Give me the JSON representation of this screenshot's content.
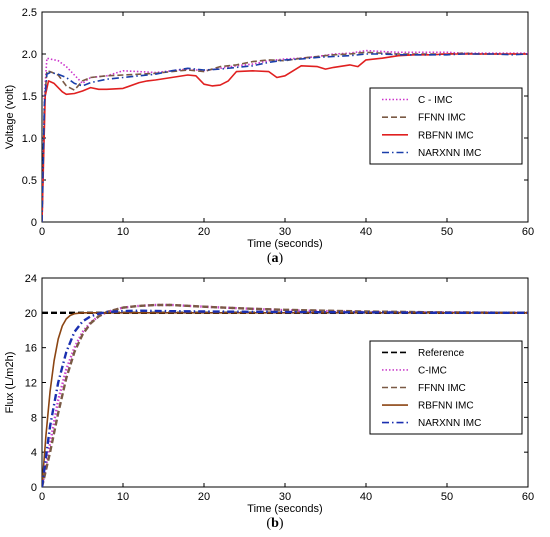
{
  "chart_data": [
    {
      "type": "line",
      "panel_label": "a",
      "xlabel": "Time (seconds)",
      "ylabel": "Voltage (volt)",
      "xlim": [
        0,
        60
      ],
      "ylim": [
        0,
        2.5
      ],
      "xticks": [
        0,
        10,
        20,
        30,
        40,
        50,
        60
      ],
      "yticks": [
        0,
        0.5,
        1.0,
        1.5,
        2.0,
        2.5
      ],
      "ytick_labels": [
        "0",
        "0.5",
        "1.0",
        "1.5",
        "2.0",
        "2.5"
      ],
      "grid": false,
      "legend_position": "right-middle",
      "series": [
        {
          "name": "C - IMC",
          "color": "#cc33cc",
          "dash": "dotted",
          "x": [
            0,
            0.3,
            0.6,
            1,
            2,
            3,
            4,
            5,
            6,
            8,
            10,
            12,
            14,
            16,
            18,
            20,
            22,
            24,
            26,
            28,
            30,
            32,
            34,
            36,
            38,
            40,
            42,
            44,
            46,
            48,
            50,
            52,
            54,
            56,
            58,
            60
          ],
          "y": [
            0,
            1.5,
            1.95,
            1.94,
            1.92,
            1.85,
            1.75,
            1.65,
            1.72,
            1.74,
            1.8,
            1.79,
            1.78,
            1.8,
            1.82,
            1.8,
            1.83,
            1.86,
            1.88,
            1.92,
            1.94,
            1.95,
            1.97,
            2.0,
            2.01,
            2.04,
            2.03,
            2.02,
            2.02,
            2.02,
            2.02,
            2.01,
            2.01,
            2.01,
            2.01,
            2.01
          ]
        },
        {
          "name": "FFNN IMC",
          "color": "#7a5a45",
          "dash": "dashed",
          "x": [
            0,
            0.3,
            0.6,
            1,
            2,
            3,
            4,
            5,
            6,
            8,
            10,
            12,
            14,
            16,
            18,
            20,
            22,
            24,
            26,
            28,
            30,
            32,
            34,
            36,
            38,
            40,
            42,
            44,
            46,
            48,
            50,
            52,
            54,
            56,
            58,
            60
          ],
          "y": [
            0,
            1.4,
            1.8,
            1.79,
            1.75,
            1.62,
            1.57,
            1.68,
            1.72,
            1.74,
            1.75,
            1.76,
            1.77,
            1.79,
            1.81,
            1.79,
            1.85,
            1.87,
            1.91,
            1.93,
            1.92,
            1.95,
            1.97,
            1.99,
            2.0,
            2.02,
            2.01,
            2.0,
            2.0,
            2.0,
            2.0,
            2.01,
            2.0,
            2.0,
            2.0,
            2.0
          ]
        },
        {
          "name": "RBFNN IMC",
          "color": "#e02020",
          "dash": "solid",
          "x": [
            0,
            0.4,
            0.8,
            1.5,
            2.5,
            3,
            4,
            5,
            6,
            7,
            8,
            10,
            12,
            13,
            14,
            16,
            18,
            19,
            20,
            21,
            22,
            23,
            24,
            26,
            28,
            29,
            30,
            31,
            32,
            34,
            35,
            36,
            38,
            39,
            40,
            42,
            44,
            46,
            48,
            50,
            52,
            54,
            56,
            58,
            60
          ],
          "y": [
            0,
            1.5,
            1.68,
            1.65,
            1.55,
            1.52,
            1.53,
            1.56,
            1.6,
            1.58,
            1.58,
            1.59,
            1.66,
            1.68,
            1.69,
            1.72,
            1.75,
            1.74,
            1.64,
            1.62,
            1.63,
            1.68,
            1.79,
            1.8,
            1.79,
            1.72,
            1.74,
            1.8,
            1.86,
            1.85,
            1.82,
            1.84,
            1.87,
            1.85,
            1.93,
            1.95,
            1.98,
            1.99,
            1.99,
            2.0,
            2.0,
            2.0,
            2.0,
            2.0,
            2.0
          ]
        },
        {
          "name": "NARXNN IMC",
          "color": "#1a3faa",
          "dash": "dashdot",
          "x": [
            0,
            0.3,
            0.6,
            1,
            2,
            3,
            4,
            5,
            6,
            8,
            10,
            12,
            14,
            16,
            18,
            20,
            22,
            24,
            26,
            28,
            30,
            32,
            34,
            36,
            38,
            40,
            42,
            44,
            46,
            48,
            50,
            52,
            54,
            56,
            58,
            60
          ],
          "y": [
            0,
            1.4,
            1.76,
            1.78,
            1.76,
            1.72,
            1.65,
            1.62,
            1.66,
            1.7,
            1.72,
            1.74,
            1.76,
            1.8,
            1.83,
            1.81,
            1.82,
            1.84,
            1.86,
            1.9,
            1.93,
            1.94,
            1.96,
            1.97,
            1.98,
            2.0,
            2.0,
            1.99,
            1.99,
            1.99,
            1.99,
            2.0,
            2.0,
            2.0,
            1.99,
            2.0
          ]
        }
      ]
    },
    {
      "type": "line",
      "panel_label": "b",
      "xlabel": "Time (seconds)",
      "ylabel": "Flux (L/m2h)",
      "xlim": [
        0,
        60
      ],
      "ylim": [
        0,
        24
      ],
      "xticks": [
        0,
        10,
        20,
        30,
        40,
        50,
        60
      ],
      "yticks": [
        0,
        4,
        8,
        12,
        16,
        20,
        24
      ],
      "ytick_labels": [
        "0",
        "4",
        "8",
        "12",
        "16",
        "20",
        "24"
      ],
      "grid": false,
      "legend_position": "right-middle",
      "series": [
        {
          "name": "Reference",
          "color": "#000000",
          "dash": "dashed",
          "x": [
            0,
            60
          ],
          "y": [
            20,
            20
          ]
        },
        {
          "name": "C-IMC",
          "color": "#cc44cc",
          "dash": "dotted",
          "x": [
            0,
            1,
            2,
            3,
            4,
            5,
            6,
            7,
            8,
            10,
            12,
            14,
            16,
            20,
            25,
            30,
            40,
            50,
            60
          ],
          "y": [
            0,
            5,
            10,
            13.5,
            16,
            17.8,
            18.9,
            19.6,
            20.1,
            20.6,
            20.8,
            20.9,
            20.9,
            20.7,
            20.5,
            20.3,
            20.1,
            20.05,
            20.0
          ]
        },
        {
          "name": "FFNN IMC",
          "color": "#7a5a45",
          "dash": "dashed",
          "x": [
            0,
            1,
            2,
            3,
            4,
            5,
            6,
            7,
            8,
            10,
            12,
            14,
            16,
            20,
            25,
            30,
            40,
            50,
            60
          ],
          "y": [
            0,
            4,
            8.5,
            12.5,
            15.5,
            17.5,
            18.8,
            19.6,
            20.1,
            20.6,
            20.8,
            20.9,
            20.9,
            20.7,
            20.5,
            20.35,
            20.15,
            20.05,
            20.0
          ]
        },
        {
          "name": "RBFNN IMC",
          "color": "#8b4513",
          "dash": "solid",
          "x": [
            0,
            0.5,
            1,
            1.5,
            2,
            2.5,
            3,
            3.5,
            4,
            5,
            6,
            8,
            10,
            20,
            30,
            40,
            50,
            60
          ],
          "y": [
            0,
            6,
            11,
            14.5,
            17,
            18.5,
            19.3,
            19.7,
            19.9,
            20.0,
            20.0,
            20.0,
            20.0,
            20.0,
            20.0,
            20.0,
            20.0,
            20.0
          ]
        },
        {
          "name": "NARXNN IMC",
          "color": "#1a2fb0",
          "dash": "dashdot",
          "x": [
            0,
            1,
            2,
            3,
            4,
            5,
            6,
            7,
            8,
            10,
            12,
            15,
            20,
            30,
            40,
            50,
            60
          ],
          "y": [
            0,
            7,
            12,
            15.5,
            17.8,
            19.0,
            19.6,
            19.9,
            20.1,
            20.2,
            20.25,
            20.2,
            20.15,
            20.1,
            20.05,
            20.0,
            20.0
          ]
        }
      ]
    }
  ]
}
